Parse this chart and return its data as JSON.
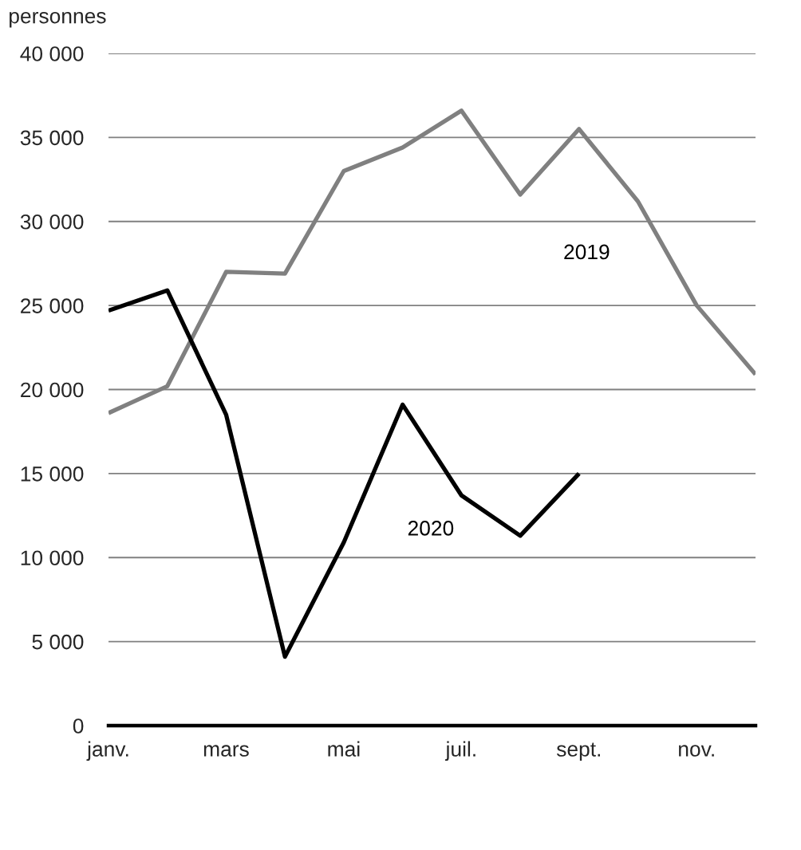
{
  "chart_data": {
    "type": "line",
    "ylabel": "personnes",
    "categories": [
      "janv.",
      null,
      "mars",
      null,
      "mai",
      null,
      "juil.",
      null,
      "sept.",
      null,
      "nov.",
      null
    ],
    "series": [
      {
        "name": "2019",
        "color": "#808080",
        "values": [
          18600,
          20200,
          27000,
          26900,
          33000,
          34400,
          36600,
          31600,
          35500,
          31200,
          25000,
          20900
        ]
      },
      {
        "name": "2020",
        "color": "#000000",
        "values": [
          24700,
          25900,
          18500,
          4100,
          10900,
          19100,
          13700,
          11300,
          15000,
          null,
          null,
          null
        ]
      }
    ],
    "ylim": [
      0,
      40000
    ],
    "yticks": [
      0,
      {
        "value": 5000,
        "label": "5 000"
      },
      {
        "value": 10000,
        "label": "10 000"
      },
      {
        "value": 15000,
        "label": "15 000"
      },
      {
        "value": 20000,
        "label": "20 000"
      },
      {
        "value": 25000,
        "label": "25 000"
      },
      {
        "value": 30000,
        "label": "30 000"
      },
      {
        "value": 35000,
        "label": "35 000"
      },
      {
        "value": 40000,
        "label": "40 000"
      }
    ],
    "grid": "y"
  }
}
